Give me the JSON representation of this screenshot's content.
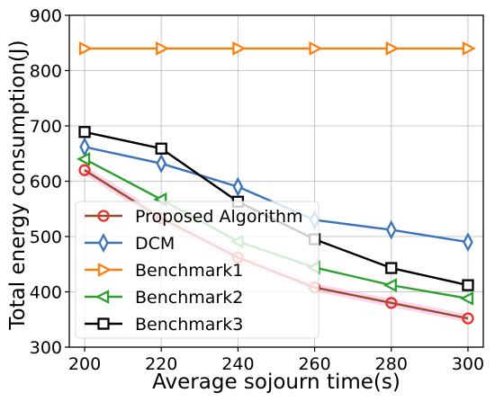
{
  "chart_data": {
    "type": "line",
    "title": "",
    "xlabel": "Average sojourn time(s)",
    "ylabel": "Total energy consumption(J)",
    "x": [
      200,
      220,
      240,
      260,
      280,
      300
    ],
    "xlim": [
      196,
      304
    ],
    "ylim": [
      300,
      900
    ],
    "xticks": [
      "200",
      "220",
      "240",
      "260",
      "280",
      "300"
    ],
    "yticks": [
      "300",
      "400",
      "500",
      "600",
      "700",
      "800",
      "900"
    ],
    "grid": true,
    "legend_position": "lower-left",
    "series": [
      {
        "name": "Proposed Algorithm",
        "color": "#e8302c",
        "line_color": "#9b4a2c",
        "marker": "circle",
        "values": [
          620,
          533,
          462,
          408,
          380,
          352
        ]
      },
      {
        "name": "DCM",
        "color": "#3b73b9",
        "marker": "thin-diamond",
        "values": [
          662,
          632,
          590,
          530,
          512,
          490
        ]
      },
      {
        "name": "Benchmark1",
        "color": "#ff7f0e",
        "marker": "triangle-right",
        "values": [
          840,
          840,
          840,
          840,
          840,
          840
        ]
      },
      {
        "name": "Benchmark2",
        "color": "#2ca02c",
        "marker": "triangle-left",
        "values": [
          640,
          567,
          491,
          444,
          412,
          388
        ]
      },
      {
        "name": "Benchmark3",
        "color": "#000000",
        "marker": "square",
        "values": [
          689,
          659,
          563,
          495,
          443,
          412
        ]
      }
    ]
  }
}
